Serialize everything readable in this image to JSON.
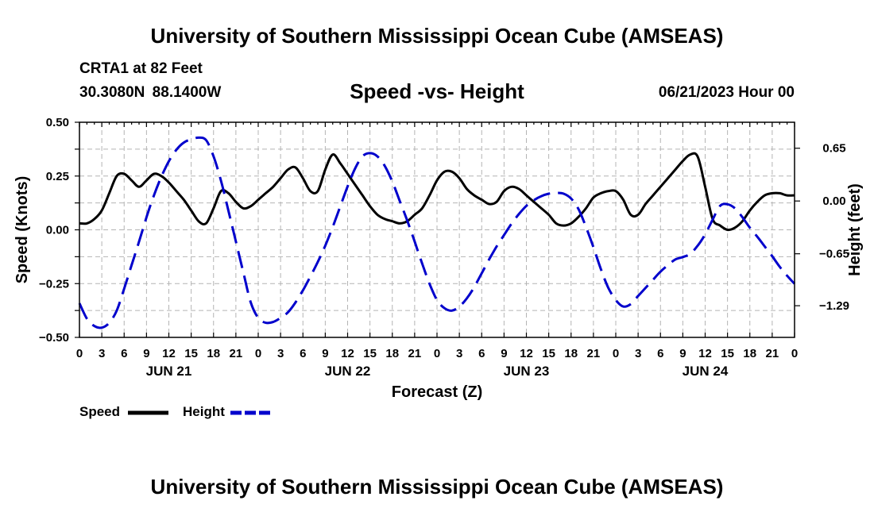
{
  "header": {
    "title_top": "University of Southern Mississippi Ocean Cube (AMSEAS)",
    "station": "CRTA1 at 82 Feet",
    "coordinates": "30.3080N  88.1400W",
    "chart_title": "Speed -vs- Height",
    "date": "06/21/2023 Hour 00",
    "title_bottom": "University of Southern Mississippi Ocean Cube (AMSEAS)"
  },
  "legend": {
    "speed_label": "Speed",
    "height_label": "Height"
  },
  "colors": {
    "speed": "#000000",
    "height": "#0000cc",
    "grid": "#b4b4b4"
  },
  "chart_data": {
    "type": "line",
    "title": "Speed -vs- Height",
    "xlabel": "Forecast (Z)",
    "ylabel": "Speed (Knots)",
    "y2label": "Height (feet)",
    "xlim": [
      0,
      96
    ],
    "ylim": [
      -0.5,
      0.5
    ],
    "y2lim": [
      -1.68,
      0.97
    ],
    "grid": true,
    "legend_position": "bottom-left",
    "x_tick_labels": [
      "0",
      "3",
      "6",
      "9",
      "12",
      "15",
      "18",
      "21",
      "0",
      "3",
      "6",
      "9",
      "12",
      "15",
      "18",
      "21",
      "0",
      "3",
      "6",
      "9",
      "12",
      "15",
      "18",
      "21",
      "0",
      "3",
      "6",
      "9",
      "12",
      "15",
      "18",
      "21",
      "0"
    ],
    "day_labels": [
      {
        "label": "JUN 21",
        "hour": 12
      },
      {
        "label": "JUN 22",
        "hour": 36
      },
      {
        "label": "JUN 23",
        "hour": 60
      },
      {
        "label": "JUN 24",
        "hour": 84
      }
    ],
    "y_ticks": [
      0.5,
      0.25,
      0.0,
      -0.25,
      -0.5
    ],
    "y_tick_labels": [
      "0.50",
      "0.25",
      "0.00",
      "−0.25",
      "−0.50"
    ],
    "y2_ticks": [
      0.65,
      0.0,
      -0.65,
      -1.29
    ],
    "y2_tick_labels": [
      "0.65",
      "0.00",
      "−0.65",
      "−1.29"
    ],
    "series": [
      {
        "name": "Speed",
        "axis": "left",
        "style": "solid",
        "x": [
          0,
          1,
          2,
          3,
          4,
          5,
          6,
          7,
          8,
          9,
          10,
          11,
          12,
          13,
          14,
          15,
          16,
          17,
          18,
          19,
          20,
          21,
          22,
          23,
          24,
          25,
          26,
          27,
          28,
          29,
          30,
          31,
          32,
          33,
          34,
          35,
          36,
          37,
          38,
          39,
          40,
          41,
          42,
          43,
          44,
          45,
          46,
          47,
          48,
          49,
          50,
          51,
          52,
          53,
          54,
          55,
          56,
          57,
          58,
          59,
          60,
          61,
          62,
          63,
          64,
          65,
          66,
          67,
          68,
          69,
          70,
          71,
          72,
          73,
          74,
          75,
          76,
          77,
          78,
          79,
          80,
          81,
          82,
          83,
          84,
          85,
          86,
          87,
          88,
          89,
          90,
          91,
          92,
          93,
          94,
          95,
          96
        ],
        "values": [
          0.03,
          0.03,
          0.05,
          0.09,
          0.17,
          0.25,
          0.26,
          0.23,
          0.2,
          0.23,
          0.26,
          0.25,
          0.22,
          0.18,
          0.14,
          0.09,
          0.04,
          0.03,
          0.1,
          0.18,
          0.17,
          0.13,
          0.1,
          0.11,
          0.14,
          0.17,
          0.2,
          0.24,
          0.28,
          0.29,
          0.24,
          0.18,
          0.18,
          0.28,
          0.35,
          0.31,
          0.26,
          0.21,
          0.16,
          0.11,
          0.07,
          0.05,
          0.04,
          0.03,
          0.04,
          0.07,
          0.1,
          0.16,
          0.23,
          0.27,
          0.27,
          0.24,
          0.19,
          0.16,
          0.14,
          0.12,
          0.13,
          0.18,
          0.2,
          0.19,
          0.16,
          0.13,
          0.1,
          0.07,
          0.03,
          0.02,
          0.03,
          0.06,
          0.1,
          0.15,
          0.17,
          0.18,
          0.18,
          0.14,
          0.07,
          0.07,
          0.12,
          0.16,
          0.2,
          0.24,
          0.28,
          0.32,
          0.35,
          0.34,
          0.2,
          0.05,
          0.02,
          0.0,
          0.01,
          0.04,
          0.09,
          0.13,
          0.16,
          0.17,
          0.17,
          0.16,
          0.16
        ]
      },
      {
        "name": "Height",
        "axis": "right",
        "style": "dashed",
        "x": [
          0,
          1,
          2,
          3,
          4,
          5,
          6,
          7,
          8,
          9,
          10,
          11,
          12,
          13,
          14,
          15,
          16,
          17,
          18,
          19,
          20,
          21,
          22,
          23,
          24,
          25,
          26,
          27,
          28,
          29,
          30,
          31,
          32,
          33,
          34,
          35,
          36,
          37,
          38,
          39,
          40,
          41,
          42,
          43,
          44,
          45,
          46,
          47,
          48,
          49,
          50,
          51,
          52,
          53,
          54,
          55,
          56,
          57,
          58,
          59,
          60,
          61,
          62,
          63,
          64,
          65,
          66,
          67,
          68,
          69,
          70,
          71,
          72,
          73,
          74,
          75,
          76,
          77,
          78,
          79,
          80,
          81,
          82,
          83,
          84,
          85,
          86,
          87,
          88,
          89,
          90,
          91,
          92,
          93,
          94,
          95,
          96
        ],
        "values": [
          -1.26,
          -1.45,
          -1.54,
          -1.56,
          -1.5,
          -1.35,
          -1.08,
          -0.79,
          -0.5,
          -0.2,
          0.07,
          0.3,
          0.49,
          0.63,
          0.72,
          0.76,
          0.78,
          0.75,
          0.55,
          0.25,
          -0.12,
          -0.5,
          -0.88,
          -1.25,
          -1.44,
          -1.5,
          -1.49,
          -1.44,
          -1.37,
          -1.25,
          -1.1,
          -0.93,
          -0.75,
          -0.55,
          -0.32,
          -0.07,
          0.18,
          0.4,
          0.55,
          0.59,
          0.55,
          0.43,
          0.24,
          0.0,
          -0.24,
          -0.5,
          -0.77,
          -1.02,
          -1.22,
          -1.32,
          -1.35,
          -1.3,
          -1.2,
          -1.06,
          -0.89,
          -0.72,
          -0.56,
          -0.42,
          -0.28,
          -0.16,
          -0.06,
          0.01,
          0.06,
          0.09,
          0.1,
          0.09,
          0.03,
          -0.1,
          -0.32,
          -0.57,
          -0.84,
          -1.07,
          -1.22,
          -1.3,
          -1.27,
          -1.17,
          -1.07,
          -0.97,
          -0.87,
          -0.79,
          -0.72,
          -0.69,
          -0.65,
          -0.55,
          -0.41,
          -0.23,
          -0.06,
          -0.04,
          -0.09,
          -0.2,
          -0.33,
          -0.44,
          -0.56,
          -0.68,
          -0.81,
          -0.92,
          -1.02
        ]
      }
    ]
  }
}
